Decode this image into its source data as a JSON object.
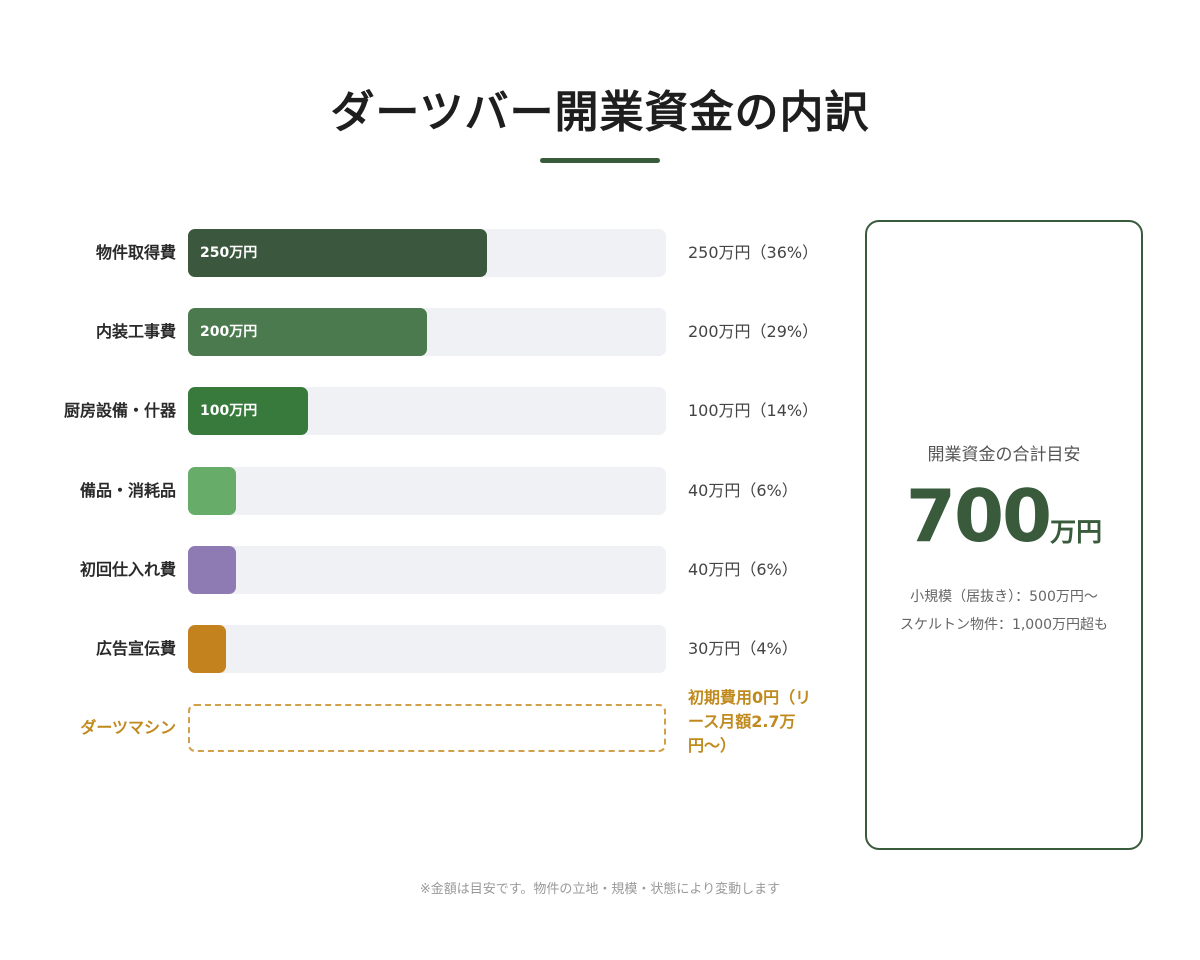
{
  "page": {
    "title": "ダーツバー開業資金の内訳",
    "footnote": "※金額は目安です。物件の立地・規模・状態により変動します"
  },
  "chart_data": {
    "type": "bar",
    "orientation": "horizontal",
    "unit": "万円",
    "xlim": [
      0,
      400
    ],
    "categories": [
      "物件取得費",
      "内装工事費",
      "厨房設備・什器",
      "備品・消耗品",
      "初回仕入れ費",
      "広告宣伝費"
    ],
    "values": [
      250,
      200,
      100,
      40,
      40,
      30
    ],
    "percents": [
      36,
      29,
      14,
      6,
      6,
      4
    ],
    "bar_labels": [
      "250万円",
      "200万円",
      "100万円",
      "",
      "",
      ""
    ],
    "value_labels": [
      "250万円（36%）",
      "200万円（29%）",
      "100万円（14%）",
      "40万円（6%）",
      "40万円（6%）",
      "30万円（4%）"
    ],
    "colors": [
      "#3b573d",
      "#4a7a4e",
      "#387a3c",
      "#68ac6a",
      "#8e7bb3",
      "#c4821f"
    ],
    "extra_row": {
      "label": "ダーツマシン",
      "note": "初期費用0円（リース月額2.7万円〜）",
      "color": "#c08a1e"
    }
  },
  "summary": {
    "caption": "開業資金の合計目安",
    "amount": "700",
    "unit": "万円",
    "note_small": "小規模（居抜き）：500万円〜",
    "note_skeleton": "スケルトン物件：1,000万円超も"
  }
}
